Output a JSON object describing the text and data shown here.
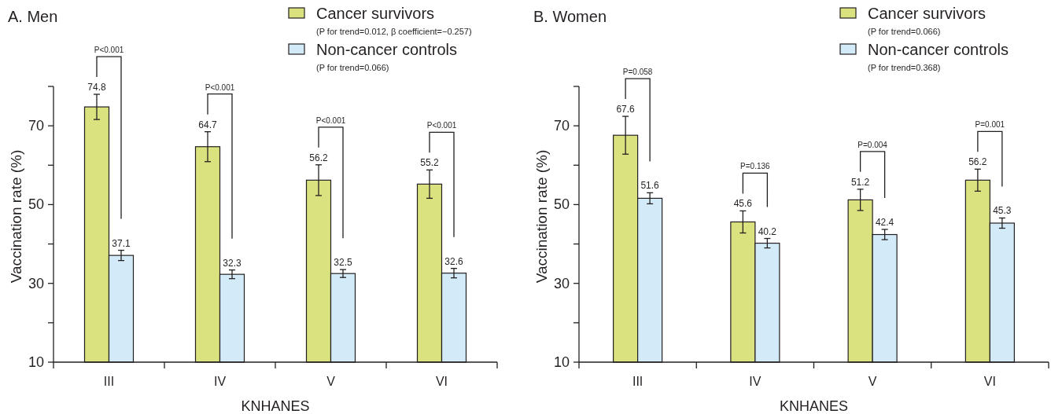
{
  "chart_data": [
    {
      "type": "bar",
      "title": "A. Men",
      "xlabel": "KNHANES",
      "ylabel": "Vaccination rate (%)",
      "categories": [
        "III",
        "IV",
        "V",
        "VI"
      ],
      "series": [
        {
          "name": "Cancer survivors",
          "color": "#d9e27e",
          "values": [
            74.8,
            64.7,
            56.2,
            55.2
          ],
          "errors": [
            3.2,
            3.8,
            3.9,
            3.6
          ]
        },
        {
          "name": "Non-cancer controls",
          "color": "#d3ebf8",
          "values": [
            37.1,
            32.3,
            32.5,
            32.6
          ],
          "errors": [
            1.3,
            1.1,
            1.0,
            1.2
          ]
        }
      ],
      "ylim": [
        10,
        80
      ],
      "yticks": [
        10,
        {
          "value": 20,
          "label": null
        },
        30,
        {
          "value": 40,
          "label": null
        },
        50,
        {
          "value": 60,
          "label": null
        },
        70,
        {
          "value": 80,
          "label": null
        }
      ],
      "data_labels": true,
      "legend": "top right",
      "annotations": [
        "P<0.001",
        "P<0.001",
        "P<0.001",
        "P<0.001",
        "(P for trend=0.012, β coefficient=−0.257)",
        "(P for trend=0.066)"
      ]
    },
    {
      "type": "bar",
      "title": "B. Women",
      "xlabel": "KNHANES",
      "ylabel": "Vaccination rate (%)",
      "categories": [
        "III",
        "IV",
        "V",
        "VI"
      ],
      "series": [
        {
          "name": "Cancer survivors",
          "color": "#d9e27e",
          "values": [
            67.6,
            45.6,
            51.2,
            56.2
          ],
          "errors": [
            4.8,
            2.8,
            2.7,
            2.8
          ]
        },
        {
          "name": "Non-cancer controls",
          "color": "#d3ebf8",
          "values": [
            51.6,
            40.2,
            42.4,
            45.3
          ],
          "errors": [
            1.4,
            1.2,
            1.3,
            1.3
          ]
        }
      ],
      "ylim": [
        10,
        80
      ],
      "yticks": [
        10,
        {
          "value": 20,
          "label": null
        },
        30,
        {
          "value": 40,
          "label": null
        },
        50,
        {
          "value": 60,
          "label": null
        },
        70,
        {
          "value": 80,
          "label": null
        }
      ],
      "data_labels": true,
      "legend": "top right",
      "annotations": [
        "P=0.058",
        "P=0.136",
        "P=0.004",
        "P=0.001",
        "(P for trend=0.066)",
        "(P for trend=0.368)"
      ]
    }
  ]
}
